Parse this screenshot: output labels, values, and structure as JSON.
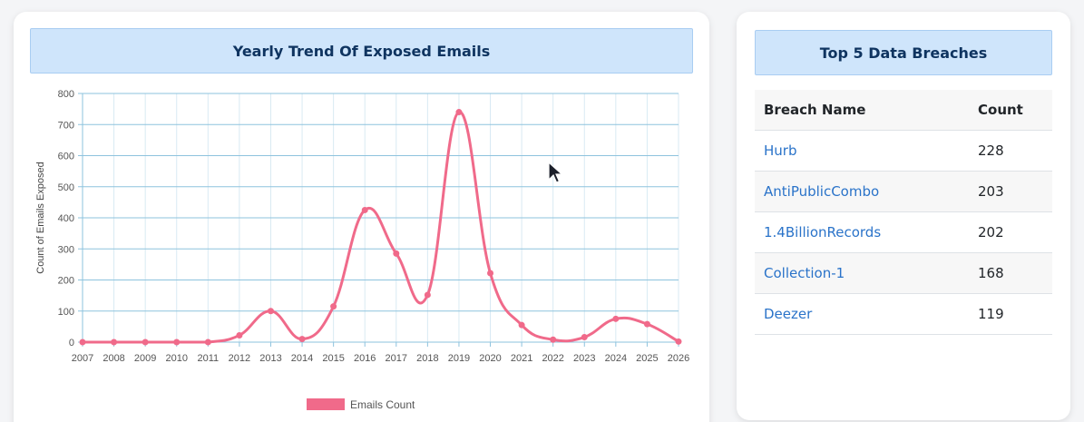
{
  "chart_card": {
    "title": "Yearly Trend Of Exposed Emails"
  },
  "chart_data": {
    "type": "line",
    "title": "Yearly Trend Of Exposed Emails",
    "xlabel": "",
    "ylabel": "Count of Emails Exposed",
    "categories": [
      "2007",
      "2008",
      "2009",
      "2010",
      "2011",
      "2012",
      "2013",
      "2014",
      "2015",
      "2016",
      "2017",
      "2018",
      "2019",
      "2020",
      "2021",
      "2022",
      "2023",
      "2024",
      "2025",
      "2026"
    ],
    "series": [
      {
        "name": "Emails Count",
        "values": [
          0,
          0,
          0,
          0,
          0,
          22,
          100,
          10,
          115,
          425,
          285,
          152,
          740,
          222,
          55,
          8,
          16,
          75,
          58,
          2
        ],
        "color": "#f06a8a"
      }
    ],
    "ylim": [
      0,
      800
    ],
    "yticks": [
      0,
      100,
      200,
      300,
      400,
      500,
      600,
      700,
      800
    ],
    "grid": true,
    "legend_position": "bottom"
  },
  "table_card": {
    "title": "Top 5 Data Breaches",
    "headers": {
      "name": "Breach Name",
      "count": "Count"
    },
    "rows": [
      {
        "name": "Hurb",
        "count": "228"
      },
      {
        "name": "AntiPublicCombo",
        "count": "203"
      },
      {
        "name": "1.4BillionRecords",
        "count": "202"
      },
      {
        "name": "Collection-1",
        "count": "168"
      },
      {
        "name": "Deezer",
        "count": "119"
      }
    ]
  },
  "colors": {
    "header_bg": "#cfe5fb",
    "header_text": "#0f3460",
    "link": "#2a73c9",
    "grid": "#8ec3de",
    "line": "#f06a8a"
  }
}
